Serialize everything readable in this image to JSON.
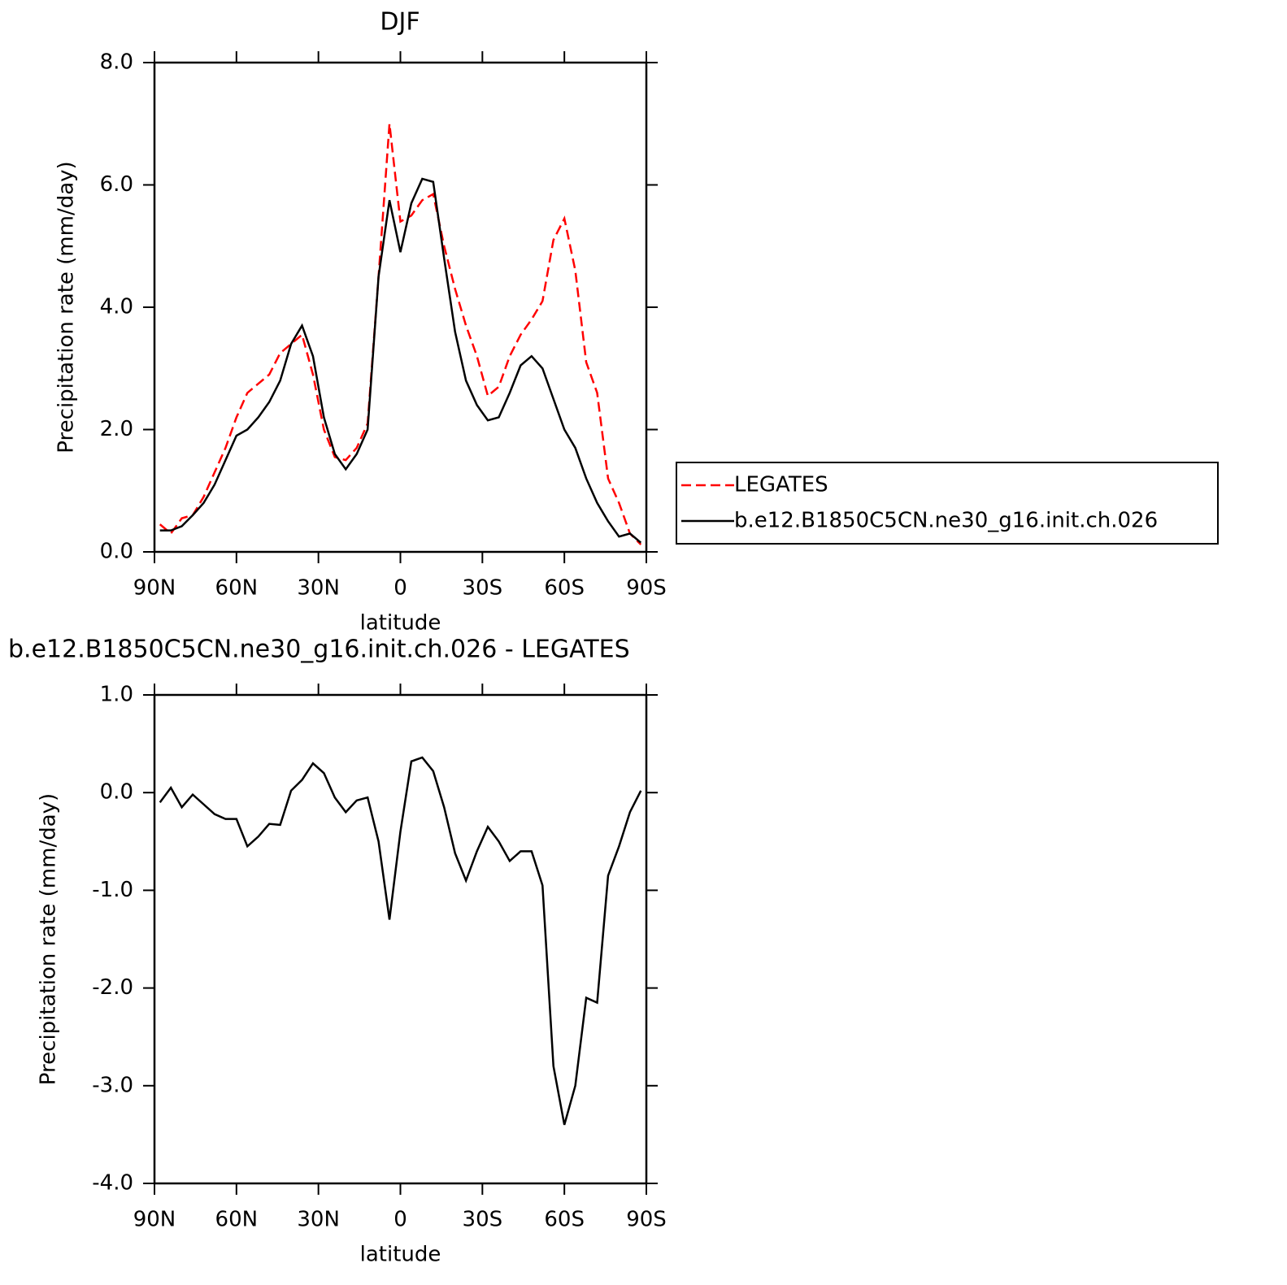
{
  "chart_data": [
    {
      "type": "line",
      "title": "DJF",
      "xlabel": "latitude",
      "ylabel": "Precipitation rate (mm/day)",
      "x": [
        88,
        84,
        80,
        76,
        72,
        68,
        64,
        60,
        56,
        52,
        48,
        44,
        40,
        36,
        32,
        28,
        24,
        20,
        16,
        12,
        8,
        4,
        0,
        -4,
        -8,
        -12,
        -16,
        -20,
        -24,
        -28,
        -32,
        -36,
        -40,
        -44,
        -48,
        -52,
        -56,
        -60,
        -64,
        -68,
        -72,
        -76,
        -80,
        -84,
        -88
      ],
      "series": [
        {
          "name": "LEGATES",
          "color": "#ff0000",
          "style": "dashed",
          "values": [
            0.45,
            0.3,
            0.55,
            0.6,
            0.9,
            1.3,
            1.7,
            2.2,
            2.6,
            2.75,
            2.9,
            3.25,
            3.4,
            3.55,
            2.9,
            2.0,
            1.55,
            1.5,
            1.7,
            2.1,
            4.5,
            7.0,
            5.4,
            5.5,
            5.75,
            5.85,
            5.0,
            4.3,
            3.7,
            3.2,
            2.55,
            2.7,
            3.2,
            3.55,
            3.8,
            4.1,
            5.1,
            5.45,
            4.6,
            3.1,
            2.6,
            1.2,
            0.8,
            0.3,
            0.12
          ]
        },
        {
          "name": "b.e12.B1850C5CN.ne30_g16.init.ch.026",
          "color": "#000000",
          "style": "solid",
          "values": [
            0.35,
            0.35,
            0.42,
            0.6,
            0.8,
            1.1,
            1.5,
            1.9,
            2.0,
            2.2,
            2.45,
            2.8,
            3.4,
            3.7,
            3.2,
            2.2,
            1.6,
            1.35,
            1.6,
            2.0,
            4.5,
            5.75,
            4.9,
            5.7,
            6.1,
            6.05,
            4.8,
            3.6,
            2.8,
            2.4,
            2.15,
            2.2,
            2.6,
            3.05,
            3.2,
            3.0,
            2.5,
            2.0,
            1.7,
            1.2,
            0.8,
            0.5,
            0.25,
            0.3,
            0.15
          ]
        }
      ],
      "xlim": [
        90,
        -90
      ],
      "xticks": [
        {
          "value": 90,
          "label": "90N"
        },
        {
          "value": 60,
          "label": "60N"
        },
        {
          "value": 30,
          "label": "30N"
        },
        0,
        {
          "value": -30,
          "label": "30S"
        },
        {
          "value": -60,
          "label": "60S"
        },
        {
          "value": -90,
          "label": "90S"
        }
      ],
      "ylim": [
        0,
        8
      ],
      "yticks": [
        {
          "value": 0,
          "label": "0.0"
        },
        {
          "value": 2,
          "label": "2.0"
        },
        {
          "value": 4,
          "label": "4.0"
        },
        {
          "value": 6,
          "label": "6.0"
        },
        {
          "value": 8,
          "label": "8.0"
        }
      ],
      "legend": "right"
    },
    {
      "type": "line",
      "title": "b.e12.B1850C5CN.ne30_g16.init.ch.026 - LEGATES",
      "xlabel": "latitude",
      "ylabel": "Precipitation rate (mm/day)",
      "x": [
        88,
        84,
        80,
        76,
        72,
        68,
        64,
        60,
        56,
        52,
        48,
        44,
        40,
        36,
        32,
        28,
        24,
        20,
        16,
        12,
        8,
        4,
        0,
        -4,
        -8,
        -12,
        -16,
        -20,
        -24,
        -28,
        -32,
        -36,
        -40,
        -44,
        -48,
        -52,
        -56,
        -60,
        -64,
        -68,
        -72,
        -76,
        -80,
        -84,
        -88
      ],
      "series": [
        {
          "color": "#000000",
          "style": "solid",
          "values": [
            -0.1,
            0.05,
            -0.15,
            -0.02,
            -0.12,
            -0.22,
            -0.27,
            -0.27,
            -0.55,
            -0.45,
            -0.32,
            -0.33,
            0.02,
            0.13,
            0.3,
            0.2,
            -0.05,
            -0.2,
            -0.08,
            -0.05,
            -0.5,
            -1.3,
            -0.4,
            0.32,
            0.36,
            0.22,
            -0.15,
            -0.62,
            -0.9,
            -0.6,
            -0.35,
            -0.5,
            -0.7,
            -0.6,
            -0.6,
            -0.95,
            -2.8,
            -3.4,
            -3.0,
            -2.1,
            -2.15,
            -0.85,
            -0.55,
            -0.2,
            0.02
          ]
        }
      ],
      "xlim": [
        90,
        -90
      ],
      "xticks": [
        {
          "value": 90,
          "label": "90N"
        },
        {
          "value": 60,
          "label": "60N"
        },
        {
          "value": 30,
          "label": "30N"
        },
        0,
        {
          "value": -30,
          "label": "30S"
        },
        {
          "value": -60,
          "label": "60S"
        },
        {
          "value": -90,
          "label": "90S"
        }
      ],
      "ylim": [
        -4,
        1
      ],
      "yticks": [
        {
          "value": -4,
          "label": "-4.0"
        },
        {
          "value": -3,
          "label": "-3.0"
        },
        {
          "value": -2,
          "label": "-2.0"
        },
        {
          "value": -1,
          "label": "-1.0"
        },
        {
          "value": 0,
          "label": "0.0"
        },
        {
          "value": 1,
          "label": "1.0"
        }
      ]
    }
  ]
}
